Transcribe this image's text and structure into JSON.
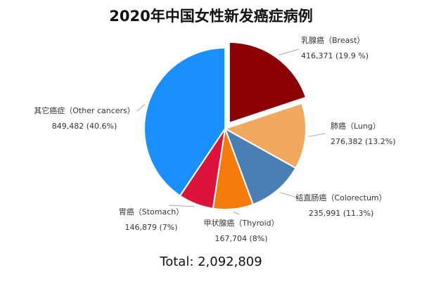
{
  "chart_data": {
    "type": "pie",
    "title": "2020年中国女性新发癌症病例",
    "categories": [
      "乳腺癌（Breast）",
      "肺癌（Lung）",
      "结直肠癌（Colorectum）",
      "甲状腺癌（Thyroid）",
      "胃癌（Stomach）",
      "其它癌症（Other cancers）"
    ],
    "values": [
      416371,
      276382,
      235991,
      167704,
      146879,
      849482
    ],
    "value_labels": [
      "416,371 (19.9 %)",
      "276,382 (13.2%)",
      "235,991 (11.3%)",
      "167,704 (8%)",
      "146,879 (7%)",
      "849,482 (40.6%)"
    ],
    "colors": [
      "#8b0000",
      "#f0a95e",
      "#4a7fb5",
      "#f57c0a",
      "#dc143c",
      "#1a8fff"
    ],
    "total_label": "Total: 2,092,809"
  }
}
